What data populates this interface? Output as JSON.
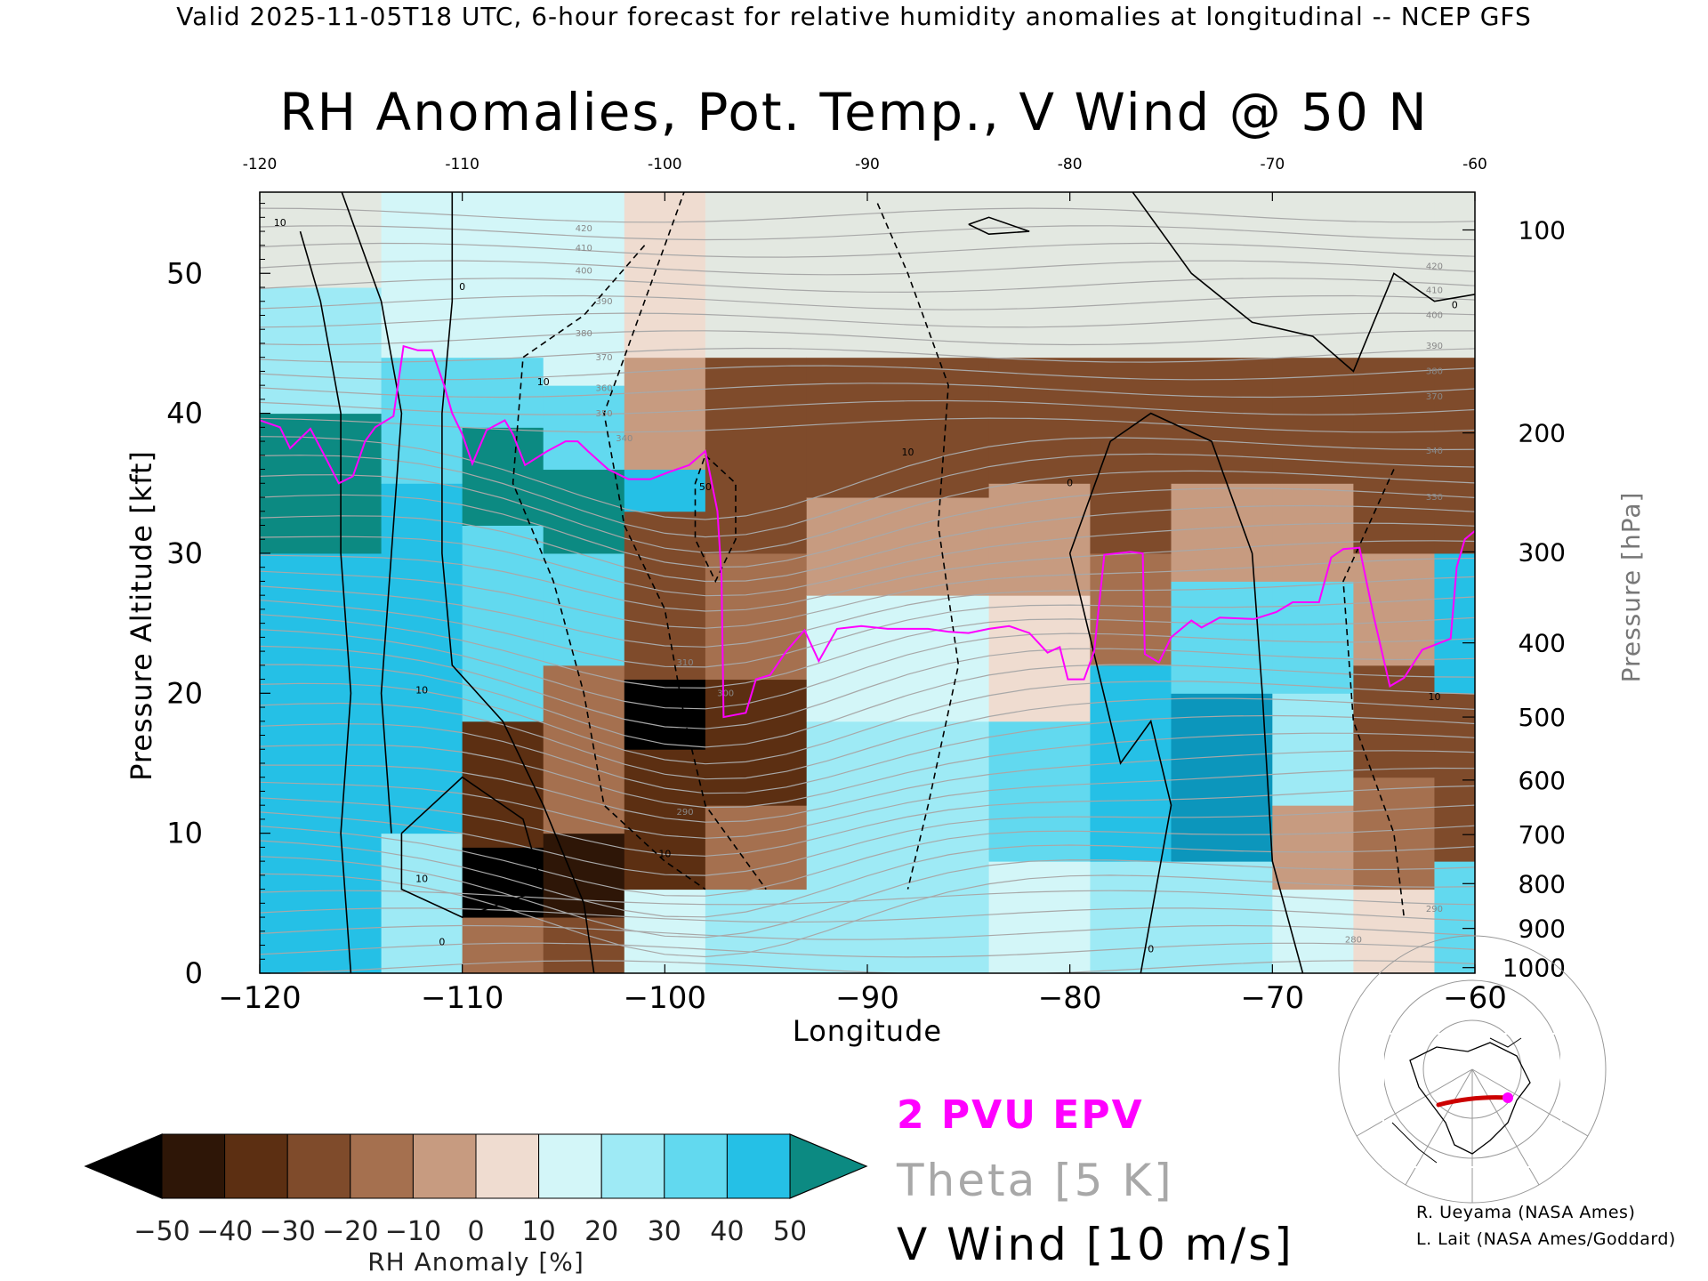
{
  "header": {
    "text": "Valid 2025-11-05T18 UTC, 6-hour forecast for relative humidity anomalies at longitudinal -- NCEP GFS"
  },
  "chart_data": {
    "type": "heatmap",
    "title": "RH Anomalies, Pot. Temp., V Wind @ 50 N",
    "xlabel": "Longitude",
    "ylabel": "Pressure Altitude [kft]",
    "y2label": "Pressure [hPa]",
    "xlim": [
      -120,
      -60
    ],
    "ylim": [
      0,
      55.8
    ],
    "x_ticks": [
      -120,
      -110,
      -100,
      -90,
      -80,
      -70,
      -60
    ],
    "x_tick_labels": [
      "−120",
      "−110",
      "−100",
      "−90",
      "−80",
      "−70",
      "−60"
    ],
    "top_tick_labels": [
      "-120",
      "-110",
      "-100",
      "-90",
      "-80",
      "-70",
      "-60"
    ],
    "y_ticks": [
      0,
      10,
      20,
      30,
      40,
      50
    ],
    "y_tick_labels": [
      "0",
      "10",
      "20",
      "30",
      "40",
      "50"
    ],
    "pressure_ticks": [
      {
        "hPa": 100,
        "kft": 53.1,
        "label": "100"
      },
      {
        "hPa": 200,
        "kft": 38.6,
        "label": "200"
      },
      {
        "hPa": 300,
        "kft": 30.1,
        "label": "300"
      },
      {
        "hPa": 400,
        "kft": 23.6,
        "label": "400"
      },
      {
        "hPa": 500,
        "kft": 18.3,
        "label": "500"
      },
      {
        "hPa": 600,
        "kft": 13.8,
        "label": "600"
      },
      {
        "hPa": 700,
        "kft": 9.9,
        "label": "700"
      },
      {
        "hPa": 800,
        "kft": 6.4,
        "label": "800"
      },
      {
        "hPa": 900,
        "kft": 3.2,
        "label": "900"
      },
      {
        "hPa": 1000,
        "kft": 0.4,
        "label": "1000"
      }
    ],
    "colorbar": {
      "label": "RH Anomaly [%]",
      "levels": [
        -50,
        -40,
        -30,
        -20,
        -10,
        0,
        10,
        20,
        30,
        40,
        50
      ],
      "level_labels": [
        "−50",
        "−40",
        "−30",
        "−20",
        "−10",
        "0",
        "10",
        "20",
        "30",
        "40",
        "50"
      ],
      "colors": [
        "#2e1607",
        "#5c2f12",
        "#7f4b2b",
        "#a5704f",
        "#c79b80",
        "#efdcd0",
        "#d3f6f8",
        "#9eeaf5",
        "#62d9ef",
        "#25c0e6",
        "#0c96bc"
      ],
      "under_color": "#000000",
      "over_color": "#0c8a82"
    },
    "rh_columns": [
      {
        "lon_from": -120,
        "lon_to": -114,
        "segments": [
          [
            0,
            30,
            "#25c0e6"
          ],
          [
            30,
            40,
            "#0c8a82"
          ],
          [
            40,
            49,
            "#9eeaf5"
          ],
          [
            49,
            55.8,
            "#e3e8e1"
          ]
        ]
      },
      {
        "lon_from": -114,
        "lon_to": -110,
        "segments": [
          [
            0,
            10,
            "#9eeaf5"
          ],
          [
            10,
            35,
            "#25c0e6"
          ],
          [
            35,
            44,
            "#62d9ef"
          ],
          [
            44,
            55.8,
            "#d3f6f8"
          ]
        ]
      },
      {
        "lon_from": -110,
        "lon_to": -106,
        "segments": [
          [
            0,
            4,
            "#a5704f"
          ],
          [
            4,
            9,
            "#000000"
          ],
          [
            9,
            18,
            "#5c2f12"
          ],
          [
            18,
            32,
            "#62d9ef"
          ],
          [
            32,
            39,
            "#0c8a82"
          ],
          [
            39,
            44,
            "#62d9ef"
          ],
          [
            44,
            55.8,
            "#d3f6f8"
          ]
        ]
      },
      {
        "lon_from": -106,
        "lon_to": -102,
        "segments": [
          [
            0,
            4,
            "#7f4b2b"
          ],
          [
            4,
            10,
            "#2e1607"
          ],
          [
            10,
            22,
            "#a5704f"
          ],
          [
            22,
            30,
            "#62d9ef"
          ],
          [
            30,
            36,
            "#0c8a82"
          ],
          [
            36,
            42,
            "#62d9ef"
          ],
          [
            42,
            55.8,
            "#d3f6f8"
          ]
        ]
      },
      {
        "lon_from": -102,
        "lon_to": -98,
        "segments": [
          [
            0,
            6,
            "#d3f6f8"
          ],
          [
            6,
            16,
            "#5c2f12"
          ],
          [
            16,
            21,
            "#000000"
          ],
          [
            21,
            33,
            "#7f4b2b"
          ],
          [
            33,
            36,
            "#25c0e6"
          ],
          [
            36,
            44,
            "#c79b80"
          ],
          [
            44,
            55.8,
            "#efdcd0"
          ]
        ]
      },
      {
        "lon_from": -98,
        "lon_to": -93,
        "segments": [
          [
            0,
            6,
            "#9eeaf5"
          ],
          [
            6,
            12,
            "#a5704f"
          ],
          [
            12,
            21,
            "#5c2f12"
          ],
          [
            21,
            30,
            "#a5704f"
          ],
          [
            30,
            44,
            "#7f4b2b"
          ],
          [
            44,
            55.8,
            "#e3e8e1"
          ]
        ]
      },
      {
        "lon_from": -93,
        "lon_to": -84,
        "segments": [
          [
            0,
            18,
            "#9eeaf5"
          ],
          [
            18,
            27,
            "#d3f6f8"
          ],
          [
            27,
            34,
            "#c79b80"
          ],
          [
            34,
            44,
            "#7f4b2b"
          ],
          [
            44,
            55.8,
            "#e3e8e1"
          ]
        ]
      },
      {
        "lon_from": -84,
        "lon_to": -79,
        "segments": [
          [
            0,
            8,
            "#d3f6f8"
          ],
          [
            8,
            18,
            "#62d9ef"
          ],
          [
            18,
            27,
            "#efdcd0"
          ],
          [
            27,
            35,
            "#c79b80"
          ],
          [
            35,
            44,
            "#7f4b2b"
          ],
          [
            44,
            55.8,
            "#e3e8e1"
          ]
        ]
      },
      {
        "lon_from": -79,
        "lon_to": -75,
        "segments": [
          [
            0,
            8,
            "#9eeaf5"
          ],
          [
            8,
            22,
            "#25c0e6"
          ],
          [
            22,
            30,
            "#a5704f"
          ],
          [
            30,
            44,
            "#7f4b2b"
          ],
          [
            44,
            55.8,
            "#e3e8e1"
          ]
        ]
      },
      {
        "lon_from": -75,
        "lon_to": -70,
        "segments": [
          [
            0,
            8,
            "#9eeaf5"
          ],
          [
            8,
            20,
            "#0c96bc"
          ],
          [
            20,
            28,
            "#62d9ef"
          ],
          [
            28,
            35,
            "#c79b80"
          ],
          [
            35,
            44,
            "#7f4b2b"
          ],
          [
            44,
            55.8,
            "#e3e8e1"
          ]
        ]
      },
      {
        "lon_from": -70,
        "lon_to": -66,
        "segments": [
          [
            0,
            6,
            "#d3f6f8"
          ],
          [
            6,
            12,
            "#c79b80"
          ],
          [
            12,
            20,
            "#9eeaf5"
          ],
          [
            20,
            28,
            "#62d9ef"
          ],
          [
            28,
            35,
            "#c79b80"
          ],
          [
            35,
            44,
            "#7f4b2b"
          ],
          [
            44,
            55.8,
            "#e3e8e1"
          ]
        ]
      },
      {
        "lon_from": -66,
        "lon_to": -62,
        "segments": [
          [
            0,
            6,
            "#efdcd0"
          ],
          [
            6,
            14,
            "#a5704f"
          ],
          [
            14,
            22,
            "#7f4b2b"
          ],
          [
            22,
            30,
            "#c79b80"
          ],
          [
            30,
            44,
            "#7f4b2b"
          ],
          [
            44,
            55.8,
            "#e3e8e1"
          ]
        ]
      },
      {
        "lon_from": -62,
        "lon_to": -60,
        "segments": [
          [
            0,
            8,
            "#62d9ef"
          ],
          [
            8,
            20,
            "#7f4b2b"
          ],
          [
            20,
            30,
            "#25c0e6"
          ],
          [
            30,
            44,
            "#7f4b2b"
          ],
          [
            44,
            55.8,
            "#e3e8e1"
          ]
        ]
      }
    ],
    "theta_contours": {
      "interval_K": 5,
      "color": "#a8a8a8",
      "labels": [
        {
          "lon": -104,
          "kft": 53.0,
          "text": "420"
        },
        {
          "lon": -104,
          "kft": 51.6,
          "text": "410"
        },
        {
          "lon": -104,
          "kft": 50.0,
          "text": "400"
        },
        {
          "lon": -103,
          "kft": 47.8,
          "text": "390"
        },
        {
          "lon": -104,
          "kft": 45.5,
          "text": "380"
        },
        {
          "lon": -103,
          "kft": 43.8,
          "text": "370"
        },
        {
          "lon": -103,
          "kft": 41.6,
          "text": "360"
        },
        {
          "lon": -103,
          "kft": 39.8,
          "text": "350"
        },
        {
          "lon": -102,
          "kft": 38.0,
          "text": "340"
        },
        {
          "lon": -99,
          "kft": 22.0,
          "text": "310"
        },
        {
          "lon": -97,
          "kft": 19.8,
          "text": "300"
        },
        {
          "lon": -99,
          "kft": 11.3,
          "text": "290"
        },
        {
          "lon": -62,
          "kft": 50.3,
          "text": "420"
        },
        {
          "lon": -62,
          "kft": 48.6,
          "text": "410"
        },
        {
          "lon": -62,
          "kft": 46.8,
          "text": "400"
        },
        {
          "lon": -62,
          "kft": 44.6,
          "text": "390"
        },
        {
          "lon": -62,
          "kft": 42.8,
          "text": "380"
        },
        {
          "lon": -62,
          "kft": 41.0,
          "text": "370"
        },
        {
          "lon": -62,
          "kft": 37.1,
          "text": "340"
        },
        {
          "lon": -62,
          "kft": 33.8,
          "text": "330"
        },
        {
          "lon": -62,
          "kft": 4.4,
          "text": "290"
        },
        {
          "lon": -66,
          "kft": 2.2,
          "text": "280"
        }
      ]
    },
    "vwind_contours": {
      "interval_ms": 10,
      "color": "#000000",
      "labels": [
        {
          "lon": -119,
          "kft": 53.4,
          "text": "10"
        },
        {
          "lon": -110,
          "kft": 48.8,
          "text": "0"
        },
        {
          "lon": -106,
          "kft": 42.0,
          "text": "10"
        },
        {
          "lon": -112,
          "kft": 20.0,
          "text": "10"
        },
        {
          "lon": -112,
          "kft": 6.5,
          "text": "10"
        },
        {
          "lon": -100,
          "kft": 8.3,
          "text": "10"
        },
        {
          "lon": -98,
          "kft": 34.5,
          "text": "50"
        },
        {
          "lon": -88,
          "kft": 37.0,
          "text": "10"
        },
        {
          "lon": -80,
          "kft": 34.8,
          "text": "0"
        },
        {
          "lon": -76,
          "kft": 1.5,
          "text": "0"
        },
        {
          "lon": -61,
          "kft": 47.5,
          "text": "0"
        },
        {
          "lon": -62,
          "kft": 19.5,
          "text": "10"
        },
        {
          "lon": -111,
          "kft": 2.0,
          "text": "0"
        }
      ]
    },
    "pvu_contour": {
      "name": "2 PVU EPV",
      "color": "#ff00ff",
      "points": [
        [
          -120,
          39.5
        ],
        [
          -119,
          39.0
        ],
        [
          -118.5,
          37.5
        ],
        [
          -117.5,
          38.9
        ],
        [
          -116.7,
          36.7
        ],
        [
          -116.1,
          35.0
        ],
        [
          -115.4,
          35.5
        ],
        [
          -114.8,
          38.0
        ],
        [
          -114.3,
          39.0
        ],
        [
          -113.4,
          39.8
        ],
        [
          -112.9,
          44.8
        ],
        [
          -112.2,
          44.5
        ],
        [
          -111.5,
          44.5
        ],
        [
          -110.9,
          42.0
        ],
        [
          -110.5,
          40.0
        ],
        [
          -110.0,
          38.5
        ],
        [
          -109.5,
          36.4
        ],
        [
          -108.8,
          38.8
        ],
        [
          -107.9,
          39.5
        ],
        [
          -107.5,
          38.5
        ],
        [
          -106.9,
          36.3
        ],
        [
          -105.8,
          37.3
        ],
        [
          -104.9,
          38.0
        ],
        [
          -104.3,
          38.0
        ],
        [
          -103.8,
          37.3
        ],
        [
          -102.8,
          36.0
        ],
        [
          -101.8,
          35.3
        ],
        [
          -100.7,
          35.3
        ],
        [
          -99.8,
          35.8
        ],
        [
          -98.8,
          36.3
        ],
        [
          -98.0,
          37.3
        ],
        [
          -97.4,
          33.0
        ],
        [
          -97.2,
          28.3
        ],
        [
          -97.1,
          18.3
        ],
        [
          -96.0,
          18.6
        ],
        [
          -95.5,
          21.0
        ],
        [
          -94.8,
          21.3
        ],
        [
          -94.0,
          23.0
        ],
        [
          -93.1,
          24.5
        ],
        [
          -92.4,
          22.3
        ],
        [
          -91.5,
          24.6
        ],
        [
          -90.3,
          24.8
        ],
        [
          -89.0,
          24.6
        ],
        [
          -87.0,
          24.6
        ],
        [
          -86.0,
          24.4
        ],
        [
          -85.0,
          24.3
        ],
        [
          -84.0,
          24.6
        ],
        [
          -83.0,
          24.8
        ],
        [
          -82.0,
          24.3
        ],
        [
          -81.1,
          22.9
        ],
        [
          -80.5,
          23.3
        ],
        [
          -80.1,
          21.0
        ],
        [
          -79.3,
          21.0
        ],
        [
          -78.8,
          23.0
        ],
        [
          -78.3,
          29.9
        ],
        [
          -77.0,
          30.1
        ],
        [
          -76.4,
          30.0
        ],
        [
          -76.3,
          22.8
        ],
        [
          -75.6,
          22.2
        ],
        [
          -75.0,
          24.0
        ],
        [
          -74.0,
          25.2
        ],
        [
          -73.5,
          24.7
        ],
        [
          -72.6,
          25.4
        ],
        [
          -70.9,
          25.3
        ],
        [
          -69.8,
          25.8
        ],
        [
          -69.0,
          26.5
        ],
        [
          -67.7,
          26.5
        ],
        [
          -67.1,
          29.7
        ],
        [
          -66.5,
          30.3
        ],
        [
          -65.7,
          30.4
        ],
        [
          -65.0,
          25.5
        ],
        [
          -64.2,
          20.5
        ],
        [
          -63.5,
          21.1
        ],
        [
          -62.6,
          23.1
        ],
        [
          -61.2,
          23.9
        ],
        [
          -60.9,
          29.0
        ],
        [
          -60.5,
          31.0
        ],
        [
          -60.0,
          31.6
        ]
      ]
    },
    "inset_map": {
      "cross_section_lat": 50,
      "line_lon_range": [
        -120,
        -60
      ],
      "line_color": "#cc0000",
      "marker_color": "#ff00ff"
    }
  },
  "legend": {
    "epv": "2 PVU EPV",
    "theta": "Theta [5 K]",
    "vwind": "V Wind [10 m/s]"
  },
  "credits": {
    "line1": "R. Ueyama (NASA Ames)",
    "line2": "L. Lait (NASA Ames/Goddard)"
  }
}
